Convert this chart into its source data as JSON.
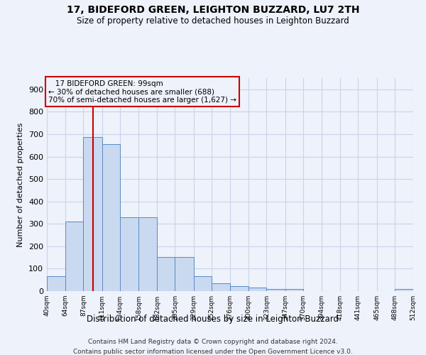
{
  "title": "17, BIDEFORD GREEN, LEIGHTON BUZZARD, LU7 2TH",
  "subtitle": "Size of property relative to detached houses in Leighton Buzzard",
  "xlabel": "Distribution of detached houses by size in Leighton Buzzard",
  "ylabel": "Number of detached properties",
  "footer_line1": "Contains HM Land Registry data © Crown copyright and database right 2024.",
  "footer_line2": "Contains public sector information licensed under the Open Government Licence v3.0.",
  "annotation_line1": "17 BIDEFORD GREEN: 99sqm",
  "annotation_line2": "← 30% of detached houses are smaller (688)",
  "annotation_line3": "70% of semi-detached houses are larger (1,627) →",
  "property_size": 99,
  "bar_color": "#c9d9ef",
  "bar_edge_color": "#5a8ac6",
  "grid_color": "#c8d4e8",
  "vline_color": "#cc0000",
  "annotation_box_edgecolor": "#cc0000",
  "bin_edges": [
    40,
    64,
    87,
    111,
    134,
    158,
    182,
    205,
    229,
    252,
    276,
    300,
    323,
    347,
    370,
    394,
    418,
    441,
    465,
    488,
    512
  ],
  "bar_heights": [
    65,
    310,
    688,
    655,
    330,
    330,
    152,
    152,
    68,
    35,
    22,
    15,
    10,
    10,
    0,
    0,
    0,
    0,
    0,
    10
  ],
  "ylim": [
    0,
    950
  ],
  "yticks": [
    0,
    100,
    200,
    300,
    400,
    500,
    600,
    700,
    800,
    900
  ],
  "background_color": "#eef2fa"
}
